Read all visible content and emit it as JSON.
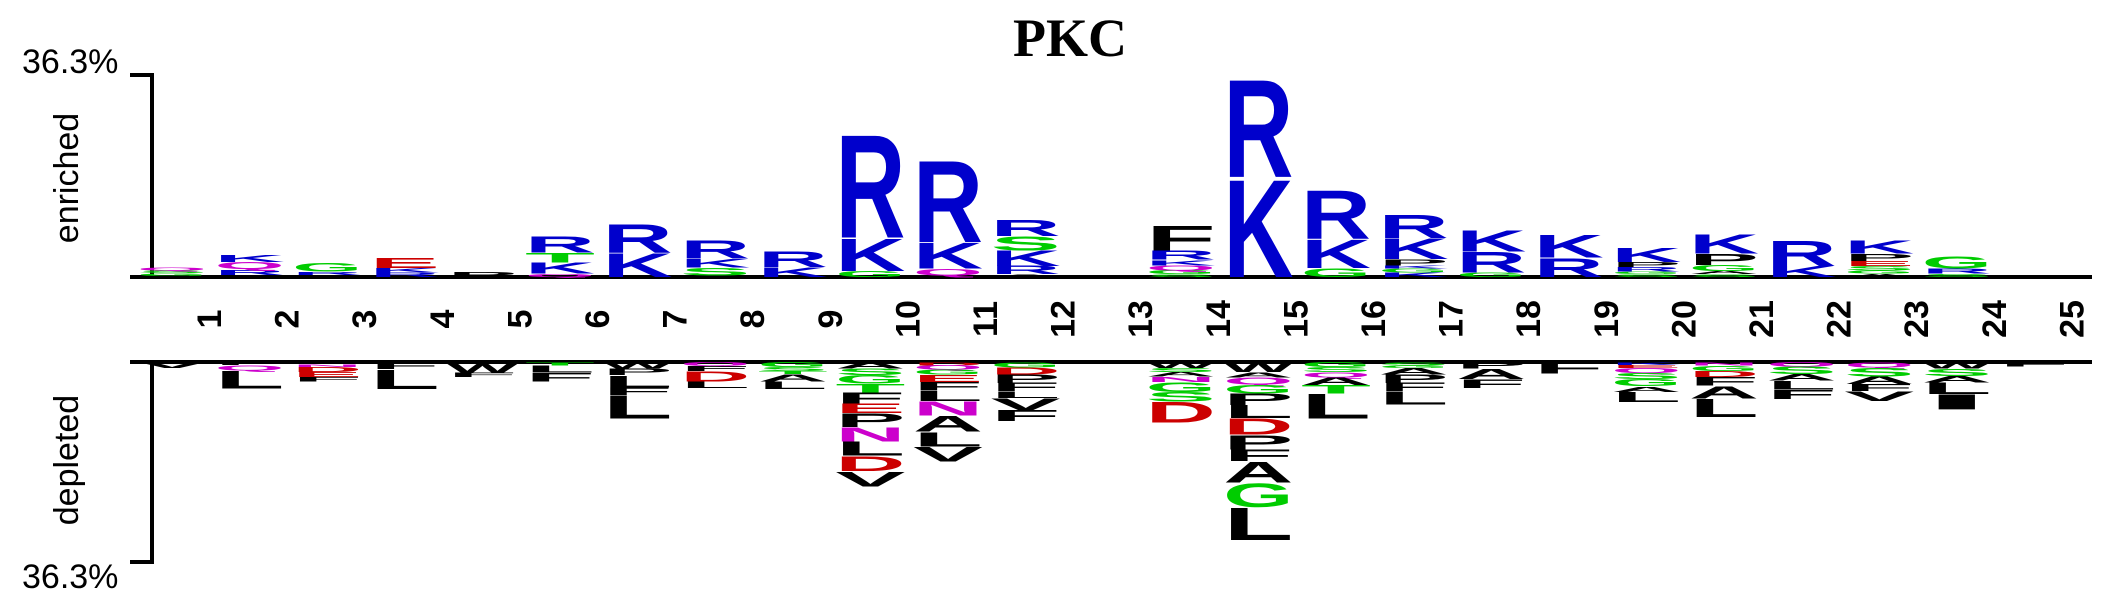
{
  "chart_data": {
    "type": "sequence-logo",
    "title": "PKC",
    "top_label": "enriched",
    "bottom_label": "depleted",
    "scale_max_top": "36.3%",
    "scale_max_bottom": "36.3%",
    "ylim": [
      -36.3,
      36.3
    ],
    "positions": [
      "1",
      "2",
      "3",
      "4",
      "5",
      "6",
      "7",
      "8",
      "9",
      "10",
      "11",
      "12",
      "13",
      "14",
      "15",
      "16",
      "17",
      "18",
      "19",
      "20",
      "21",
      "22",
      "23",
      "24",
      "25"
    ],
    "enriched": [
      [
        [
          "A",
          0.2
        ],
        [
          "G",
          0.5
        ],
        [
          "S",
          0.5
        ],
        [
          "Q",
          0.6
        ]
      ],
      [
        [
          "A",
          0.4
        ],
        [
          "R",
          1.0
        ],
        [
          "Q",
          1.3
        ],
        [
          "K",
          1.3
        ]
      ],
      [
        [
          "A",
          0.4
        ],
        [
          "R",
          0.6
        ],
        [
          "G",
          1.6
        ]
      ],
      [
        [
          "R",
          0.8
        ],
        [
          "K",
          0.8
        ],
        [
          "E",
          1.9
        ]
      ],
      [
        [
          "P",
          0.9
        ]
      ],
      [
        [
          "Q",
          0.6
        ],
        [
          "K",
          2.0
        ],
        [
          "T",
          1.8
        ],
        [
          "R",
          3.0
        ]
      ],
      [
        [
          "K",
          4.4
        ],
        [
          "R",
          5.2
        ]
      ],
      [
        [
          "A",
          0.3
        ],
        [
          "S",
          1.4
        ],
        [
          "K",
          1.6
        ],
        [
          "R",
          3.3
        ]
      ],
      [
        [
          "K",
          1.8
        ],
        [
          "R",
          2.9
        ]
      ],
      [
        [
          "G",
          1.1
        ],
        [
          "K",
          6.0
        ],
        [
          "R",
          19.0
        ]
      ],
      [
        [
          "A",
          0.3
        ],
        [
          "Q",
          1.2
        ],
        [
          "K",
          4.8
        ],
        [
          "R",
          15.0
        ]
      ],
      [
        [
          "A",
          0.5
        ],
        [
          "R",
          1.5
        ],
        [
          "K",
          2.8
        ],
        [
          "S",
          2.6
        ],
        [
          "R",
          3.0
        ]
      ],
      [
        [
          "A",
          0.4
        ]
      ],
      [
        [
          "S",
          0.5
        ],
        [
          "G",
          0.7
        ],
        [
          "Q",
          0.9
        ],
        [
          "K",
          1.0
        ],
        [
          "R",
          1.7
        ],
        [
          "F",
          4.5
        ]
      ],
      [
        [
          "K",
          18.0
        ],
        [
          "R",
          18.0
        ]
      ],
      [
        [
          "G",
          1.6
        ],
        [
          "K",
          5.3
        ],
        [
          "R",
          8.9
        ]
      ],
      [
        [
          "K",
          0.8
        ],
        [
          "G",
          0.7
        ],
        [
          "K",
          0.6
        ],
        [
          "P",
          1.1
        ],
        [
          "K",
          3.8
        ],
        [
          "R",
          4.3
        ]
      ],
      [
        [
          "G",
          0.8
        ],
        [
          "R",
          3.8
        ],
        [
          "K",
          3.9
        ]
      ],
      [
        [
          "R",
          3.5
        ],
        [
          "K",
          4.2
        ]
      ],
      [
        [
          "S",
          0.5
        ],
        [
          "G",
          0.5
        ],
        [
          "R",
          0.8
        ],
        [
          "P",
          0.9
        ],
        [
          "K",
          2.6
        ]
      ],
      [
        [
          "S",
          0.5
        ],
        [
          "A",
          0.6
        ],
        [
          "G",
          1.1
        ],
        [
          "P",
          2.0
        ],
        [
          "K",
          3.6
        ]
      ],
      [
        [
          "K",
          2.0
        ],
        [
          "R",
          4.7
        ]
      ],
      [
        [
          "A",
          0.6
        ],
        [
          "G",
          0.6
        ],
        [
          "S",
          0.8
        ],
        [
          "E",
          0.9
        ],
        [
          "P",
          1.3
        ],
        [
          "K",
          2.4
        ]
      ],
      [
        [
          "S",
          0.6
        ],
        [
          "R",
          0.9
        ],
        [
          "G",
          2.2
        ]
      ],
      [
        [
          "A",
          0.4
        ]
      ]
    ],
    "depleted": [
      [
        [
          "V",
          1.1
        ]
      ],
      [
        [
          "F",
          0.5
        ],
        [
          "Q",
          1.0
        ],
        [
          "L",
          3.3
        ]
      ],
      [
        [
          "A",
          0.4
        ],
        [
          "N",
          0.5
        ],
        [
          "D",
          0.9
        ],
        [
          "E",
          0.9
        ],
        [
          "F",
          0.8
        ]
      ],
      [
        [
          "F",
          1.3
        ],
        [
          "L",
          3.6
        ]
      ],
      [
        [
          "A",
          0.4
        ],
        [
          "W",
          1.5
        ],
        [
          "F",
          0.8
        ]
      ],
      [
        [
          "T",
          0.6
        ],
        [
          "L",
          1.3
        ],
        [
          "F",
          1.6
        ]
      ],
      [
        [
          "W",
          1.2
        ],
        [
          "P",
          1.2
        ],
        [
          "L",
          2.2
        ],
        [
          "F",
          1.4
        ],
        [
          "L",
          4.3
        ]
      ],
      [
        [
          "Q",
          0.7
        ],
        [
          "F",
          0.9
        ],
        [
          "D",
          1.9
        ],
        [
          "L",
          1.2
        ]
      ],
      [
        [
          "G",
          0.9
        ],
        [
          "S",
          0.7
        ],
        [
          "T",
          0.6
        ],
        [
          "A",
          1.3
        ],
        [
          "L",
          1.4
        ]
      ],
      [
        [
          "A",
          1.2
        ],
        [
          "S",
          1.2
        ],
        [
          "G",
          1.5
        ],
        [
          "T",
          1.6
        ],
        [
          "F",
          2.0
        ],
        [
          "E",
          1.8
        ],
        [
          "P",
          2.5
        ],
        [
          "N",
          2.6
        ],
        [
          "L",
          2.6
        ],
        [
          "D",
          2.8
        ],
        [
          "V",
          2.8
        ]
      ],
      [
        [
          "D",
          0.6
        ],
        [
          "Q",
          0.8
        ],
        [
          "G",
          0.9
        ],
        [
          "E",
          1.3
        ],
        [
          "F",
          1.6
        ],
        [
          "L",
          1.9
        ],
        [
          "N",
          2.6
        ],
        [
          "A",
          2.9
        ],
        [
          "L",
          2.7
        ],
        [
          "V",
          2.8
        ]
      ],
      [
        [
          "G",
          1.0
        ],
        [
          "D",
          1.3
        ],
        [
          "P",
          1.5
        ],
        [
          "F",
          1.5
        ],
        [
          "L",
          1.2
        ],
        [
          "V",
          2.2
        ],
        [
          "F",
          2.0
        ]
      ],
      [],
      [
        [
          "W",
          1.1
        ],
        [
          "S",
          0.7
        ],
        [
          "A",
          0.8
        ],
        [
          "N",
          1.0
        ],
        [
          "G",
          1.8
        ],
        [
          "S",
          1.8
        ],
        [
          "D",
          3.8
        ]
      ],
      [
        [
          "W",
          1.8
        ],
        [
          "A",
          1.0
        ],
        [
          "Q",
          1.3
        ],
        [
          "G",
          1.6
        ],
        [
          "P",
          2.1
        ],
        [
          "L",
          2.4
        ],
        [
          "D",
          3.0
        ],
        [
          "P",
          2.7
        ],
        [
          "F",
          2.1
        ],
        [
          "A",
          3.9
        ],
        [
          "G",
          4.4
        ],
        [
          "L",
          6.0
        ]
      ],
      [
        [
          "G",
          0.9
        ],
        [
          "S",
          0.9
        ],
        [
          "Q",
          1.0
        ],
        [
          "A",
          1.4
        ],
        [
          "T",
          1.5
        ],
        [
          "L",
          4.6
        ]
      ],
      [
        [
          "S",
          0.6
        ],
        [
          "G",
          0.5
        ],
        [
          "A",
          1.2
        ],
        [
          "P",
          1.5
        ],
        [
          "F",
          1.5
        ],
        [
          "L",
          2.4
        ]
      ],
      [
        [
          "P",
          1.2
        ],
        [
          "A",
          1.9
        ],
        [
          "F",
          1.6
        ]
      ],
      [
        [
          "F",
          2.1
        ]
      ],
      [
        [
          "K",
          0.5
        ],
        [
          "E",
          0.6
        ],
        [
          "Q",
          0.9
        ],
        [
          "S",
          1.1
        ],
        [
          "G",
          1.3
        ],
        [
          "A",
          1.0
        ],
        [
          "L",
          1.9
        ]
      ],
      [
        [
          "N",
          0.6
        ],
        [
          "G",
          1.0
        ],
        [
          "D",
          1.1
        ],
        [
          "F",
          1.6
        ],
        [
          "A",
          2.3
        ],
        [
          "L",
          3.4
        ]
      ],
      [
        [
          "Q",
          0.8
        ],
        [
          "S",
          1.4
        ],
        [
          "A",
          1.2
        ],
        [
          "L",
          1.6
        ],
        [
          "F",
          1.7
        ]
      ],
      [
        [
          "Q",
          1.0
        ],
        [
          "S",
          1.6
        ],
        [
          "A",
          1.4
        ],
        [
          "F",
          1.3
        ],
        [
          "V",
          1.8
        ]
      ],
      [
        [
          "W",
          1.2
        ],
        [
          "S",
          1.3
        ],
        [
          "A",
          1.2
        ],
        [
          "L",
          2.1
        ],
        [
          "I",
          2.8
        ]
      ],
      [
        [
          "F",
          0.8
        ]
      ]
    ],
    "colors": {
      "K": "#0000cc",
      "R": "#0000cc",
      "H": "#0000cc",
      "D": "#cc0000",
      "E": "#cc0000",
      "N": "#cc00cc",
      "Q": "#cc00cc",
      "S": "#00cc00",
      "T": "#00cc00",
      "G": "#00cc00",
      "Y": "#00cc00",
      "C": "#00cc00",
      "A": "#000000",
      "V": "#000000",
      "L": "#000000",
      "I": "#000000",
      "P": "#000000",
      "F": "#000000",
      "W": "#000000",
      "M": "#000000"
    }
  }
}
